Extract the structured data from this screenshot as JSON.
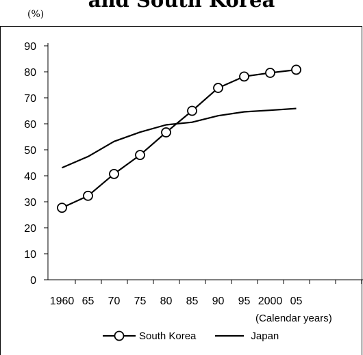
{
  "chart_data": {
    "type": "line",
    "title": "and South Korea",
    "ylabel": "(%)",
    "xlabel": "(Calendar years)",
    "categories": [
      "1960",
      "65",
      "70",
      "75",
      "80",
      "85",
      "90",
      "95",
      "2000",
      "05"
    ],
    "x": [
      1960,
      1965,
      1970,
      1975,
      1980,
      1985,
      1990,
      1995,
      2000,
      2005
    ],
    "ylim": [
      0,
      90
    ],
    "yticks": [
      0,
      10,
      20,
      30,
      40,
      50,
      60,
      70,
      80,
      90
    ],
    "grid": false,
    "legend_position": "bottom",
    "series": [
      {
        "name": "South Korea",
        "marker": "circle",
        "values": [
          27.7,
          32.3,
          40.7,
          48.0,
          56.7,
          65.0,
          73.8,
          78.2,
          79.6,
          80.8
        ]
      },
      {
        "name": "Japan",
        "marker": "none",
        "values": [
          43.1,
          47.4,
          53.2,
          56.8,
          59.6,
          60.6,
          63.1,
          64.6,
          65.2,
          65.9
        ]
      }
    ]
  },
  "colors": {
    "line": "#000000",
    "marker_fill": "#ffffff",
    "background": "#ffffff"
  }
}
